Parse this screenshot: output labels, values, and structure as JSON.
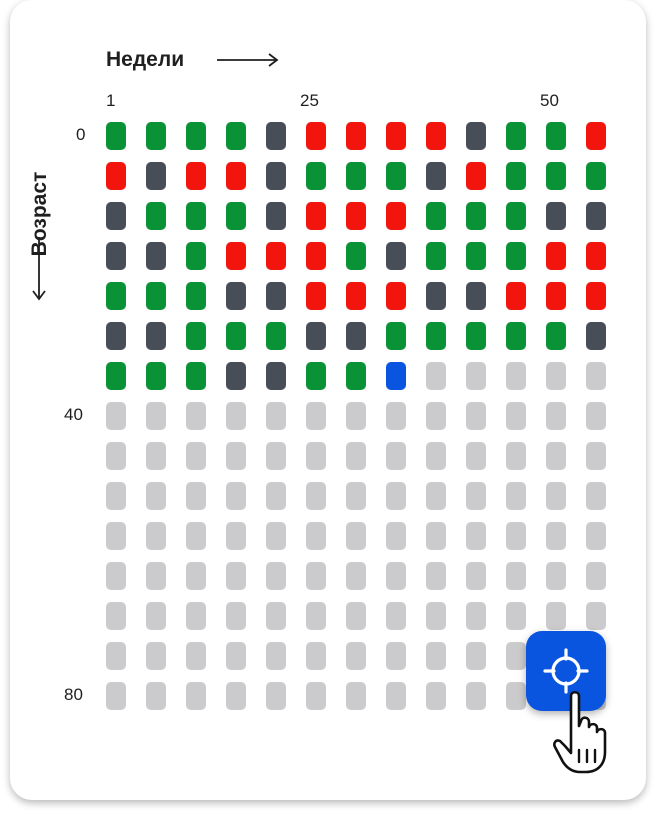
{
  "header": {
    "weeks_label": "Недели",
    "age_label": "Возраст"
  },
  "week_ticks": [
    "1",
    "25",
    "50"
  ],
  "age_ticks": [
    "0",
    "40",
    "80"
  ],
  "palette": {
    "green": "#0a9237",
    "red": "#f2150e",
    "dark": "#474e57",
    "blue": "#0a55e0",
    "empty": "#cbcbcd"
  },
  "grid": {
    "columns": 13,
    "rows": [
      "GGGGDRRRRDGGR",
      "RDRRDGGGDRGGG",
      "DGGGDRRRGGGDD",
      "DDGRRRGDGGGRR",
      "GGGDDRRRDDRRR",
      "DDGGGDDGGGGGD",
      "GGGDDGGBEEEEE",
      "EEEEEEEEEEEEE",
      "EEEEEEEEEEEEE",
      "EEEEEEEEEEEEE",
      "EEEEEEEEEEEEE",
      "EEEEEEEEEEEEE",
      "EEEEEEEEEEEEE",
      "EEEEEEEEEEEEE",
      "EEEEEEEEEEEEE"
    ]
  },
  "locate_button": {
    "icon": "crosshair-icon"
  },
  "cursor": {
    "icon": "hand-pointer-icon"
  }
}
